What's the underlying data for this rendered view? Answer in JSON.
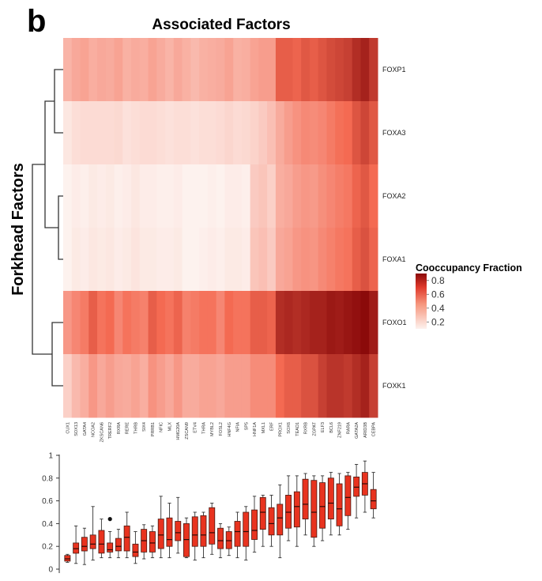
{
  "panel_label": "b",
  "chart_data": [
    {
      "type": "heatmap",
      "title": "Associated Factors",
      "ylabel": "Forkhead Factors",
      "legend": {
        "title": "Cooccupancy Fraction",
        "ticks": [
          0.8,
          0.6,
          0.4,
          0.2
        ],
        "range": [
          0.1,
          0.9
        ],
        "position": "right"
      },
      "colors": {
        "low": "#fdf2ee",
        "mid": "#f46a52",
        "high": "#8b0a0a"
      },
      "rows": [
        "FOXP1",
        "FOXA3",
        "FOXA2",
        "FOXA1",
        "FOXO1",
        "FOXK1"
      ],
      "columns": [
        "CUX1",
        "SOX13",
        "GATA4",
        "NCOA2",
        "ZKSCAN6",
        "TRERF2",
        "RXRA",
        "RERE",
        "THRB",
        "SIX4",
        "PRRB1",
        "NFIC",
        "MLX",
        "HMG20A",
        "ZSCAN9",
        "ETV4",
        "THRA",
        "MYBL2",
        "FOSL2",
        "HNF4G",
        "NFIA",
        "SP5",
        "HNF1A",
        "MXL1",
        "ERF",
        "PROX1",
        "SOX6",
        "TEAD1",
        "RXRB",
        "ZGPAT",
        "ELF3",
        "BCL6",
        "ZNF219",
        "RARA",
        "GATA2A",
        "ARID3B",
        "CEBPA"
      ],
      "values": [
        [
          0.32,
          0.36,
          0.38,
          0.34,
          0.36,
          0.35,
          0.38,
          0.33,
          0.35,
          0.34,
          0.38,
          0.35,
          0.32,
          0.36,
          0.33,
          0.3,
          0.33,
          0.34,
          0.35,
          0.38,
          0.33,
          0.34,
          0.38,
          0.4,
          0.4,
          0.62,
          0.62,
          0.6,
          0.64,
          0.62,
          0.65,
          0.68,
          0.7,
          0.72,
          0.78,
          0.82,
          0.74
        ],
        [
          0.14,
          0.17,
          0.18,
          0.18,
          0.18,
          0.18,
          0.19,
          0.16,
          0.17,
          0.18,
          0.18,
          0.17,
          0.16,
          0.17,
          0.17,
          0.16,
          0.17,
          0.17,
          0.18,
          0.2,
          0.18,
          0.19,
          0.21,
          0.24,
          0.28,
          0.35,
          0.4,
          0.44,
          0.47,
          0.46,
          0.48,
          0.52,
          0.56,
          0.58,
          0.65,
          0.7,
          0.64
        ],
        [
          0.08,
          0.12,
          0.11,
          0.13,
          0.12,
          0.13,
          0.11,
          0.12,
          0.14,
          0.12,
          0.12,
          0.11,
          0.11,
          0.12,
          0.09,
          0.08,
          0.1,
          0.11,
          0.1,
          0.12,
          0.12,
          0.11,
          0.24,
          0.26,
          0.22,
          0.34,
          0.36,
          0.4,
          0.42,
          0.41,
          0.45,
          0.48,
          0.51,
          0.53,
          0.6,
          0.64,
          0.58
        ],
        [
          0.09,
          0.13,
          0.12,
          0.14,
          0.13,
          0.14,
          0.12,
          0.13,
          0.15,
          0.13,
          0.13,
          0.12,
          0.12,
          0.13,
          0.1,
          0.09,
          0.11,
          0.12,
          0.11,
          0.13,
          0.13,
          0.12,
          0.26,
          0.28,
          0.24,
          0.36,
          0.38,
          0.42,
          0.44,
          0.43,
          0.47,
          0.5,
          0.53,
          0.55,
          0.62,
          0.66,
          0.6
        ],
        [
          0.42,
          0.48,
          0.52,
          0.62,
          0.55,
          0.58,
          0.48,
          0.55,
          0.52,
          0.5,
          0.62,
          0.58,
          0.55,
          0.6,
          0.5,
          0.52,
          0.55,
          0.55,
          0.48,
          0.58,
          0.55,
          0.55,
          0.62,
          0.62,
          0.6,
          0.78,
          0.8,
          0.78,
          0.8,
          0.82,
          0.82,
          0.85,
          0.84,
          0.86,
          0.88,
          0.92,
          0.84
        ],
        [
          0.22,
          0.3,
          0.34,
          0.42,
          0.36,
          0.4,
          0.36,
          0.35,
          0.38,
          0.34,
          0.44,
          0.4,
          0.36,
          0.42,
          0.35,
          0.35,
          0.38,
          0.38,
          0.36,
          0.4,
          0.4,
          0.4,
          0.46,
          0.46,
          0.46,
          0.58,
          0.62,
          0.62,
          0.66,
          0.66,
          0.72,
          0.76,
          0.76,
          0.74,
          0.78,
          0.82,
          0.72
        ]
      ]
    },
    {
      "type": "box",
      "ylim": [
        0,
        1
      ],
      "yticks": [
        0,
        0.2,
        0.4,
        0.6,
        0.8,
        1
      ],
      "boxes": [
        {
          "min": 0.06,
          "q1": 0.07,
          "median": 0.09,
          "q3": 0.12,
          "max": 0.13
        },
        {
          "min": 0.05,
          "q1": 0.14,
          "median": 0.18,
          "q3": 0.23,
          "max": 0.38
        },
        {
          "min": 0.04,
          "q1": 0.16,
          "median": 0.2,
          "q3": 0.28,
          "max": 0.36
        },
        {
          "min": 0.08,
          "q1": 0.18,
          "median": 0.22,
          "q3": 0.3,
          "max": 0.55
        },
        {
          "min": 0.1,
          "q1": 0.14,
          "median": 0.22,
          "q3": 0.34,
          "max": 0.44
        },
        {
          "min": 0.1,
          "q1": 0.15,
          "median": 0.17,
          "q3": 0.23,
          "max": 0.33,
          "outliers": [
            0.44
          ]
        },
        {
          "min": 0.1,
          "q1": 0.16,
          "median": 0.2,
          "q3": 0.27,
          "max": 0.35
        },
        {
          "min": 0.1,
          "q1": 0.16,
          "median": 0.28,
          "q3": 0.38,
          "max": 0.5
        },
        {
          "min": 0.05,
          "q1": 0.11,
          "median": 0.15,
          "q3": 0.22,
          "max": 0.33
        },
        {
          "min": 0.09,
          "q1": 0.15,
          "median": 0.25,
          "q3": 0.35,
          "max": 0.39
        },
        {
          "min": 0.1,
          "q1": 0.15,
          "median": 0.23,
          "q3": 0.33,
          "max": 0.38
        },
        {
          "min": 0.1,
          "q1": 0.18,
          "median": 0.3,
          "q3": 0.44,
          "max": 0.64
        },
        {
          "min": 0.1,
          "q1": 0.2,
          "median": 0.26,
          "q3": 0.45,
          "max": 0.58
        },
        {
          "min": 0.14,
          "q1": 0.25,
          "median": 0.32,
          "q3": 0.42,
          "max": 0.63
        },
        {
          "min": 0.1,
          "q1": 0.11,
          "median": 0.26,
          "q3": 0.4,
          "max": 0.45
        },
        {
          "min": 0.08,
          "q1": 0.2,
          "median": 0.3,
          "q3": 0.46,
          "max": 0.5
        },
        {
          "min": 0.1,
          "q1": 0.2,
          "median": 0.3,
          "q3": 0.47,
          "max": 0.5
        },
        {
          "min": 0.13,
          "q1": 0.22,
          "median": 0.32,
          "q3": 0.54,
          "max": 0.58
        },
        {
          "min": 0.1,
          "q1": 0.18,
          "median": 0.25,
          "q3": 0.36,
          "max": 0.4
        },
        {
          "min": 0.12,
          "q1": 0.18,
          "median": 0.25,
          "q3": 0.33,
          "max": 0.37
        },
        {
          "min": 0.1,
          "q1": 0.2,
          "median": 0.33,
          "q3": 0.42,
          "max": 0.5
        },
        {
          "min": 0.08,
          "q1": 0.2,
          "median": 0.33,
          "q3": 0.5,
          "max": 0.55
        },
        {
          "min": 0.15,
          "q1": 0.26,
          "median": 0.34,
          "q3": 0.52,
          "max": 0.64
        },
        {
          "min": 0.2,
          "q1": 0.35,
          "median": 0.5,
          "q3": 0.63,
          "max": 0.65
        },
        {
          "min": 0.2,
          "q1": 0.3,
          "median": 0.4,
          "q3": 0.54,
          "max": 0.65
        },
        {
          "min": 0.1,
          "q1": 0.3,
          "median": 0.45,
          "q3": 0.57,
          "max": 0.74
        },
        {
          "min": 0.25,
          "q1": 0.36,
          "median": 0.5,
          "q3": 0.65,
          "max": 0.82
        },
        {
          "min": 0.2,
          "q1": 0.37,
          "median": 0.55,
          "q3": 0.68,
          "max": 0.82
        },
        {
          "min": 0.3,
          "q1": 0.44,
          "median": 0.57,
          "q3": 0.79,
          "max": 0.84
        },
        {
          "min": 0.2,
          "q1": 0.28,
          "median": 0.5,
          "q3": 0.78,
          "max": 0.82
        },
        {
          "min": 0.25,
          "q1": 0.36,
          "median": 0.55,
          "q3": 0.76,
          "max": 0.82
        },
        {
          "min": 0.3,
          "q1": 0.44,
          "median": 0.58,
          "q3": 0.8,
          "max": 0.85
        },
        {
          "min": 0.3,
          "q1": 0.38,
          "median": 0.53,
          "q3": 0.75,
          "max": 0.84
        },
        {
          "min": 0.35,
          "q1": 0.47,
          "median": 0.63,
          "q3": 0.82,
          "max": 0.85
        },
        {
          "min": 0.45,
          "q1": 0.64,
          "median": 0.72,
          "q3": 0.81,
          "max": 0.92
        },
        {
          "min": 0.5,
          "q1": 0.65,
          "median": 0.75,
          "q3": 0.85,
          "max": 0.95
        },
        {
          "min": 0.45,
          "q1": 0.53,
          "median": 0.6,
          "q3": 0.7,
          "max": 0.85
        }
      ]
    }
  ]
}
